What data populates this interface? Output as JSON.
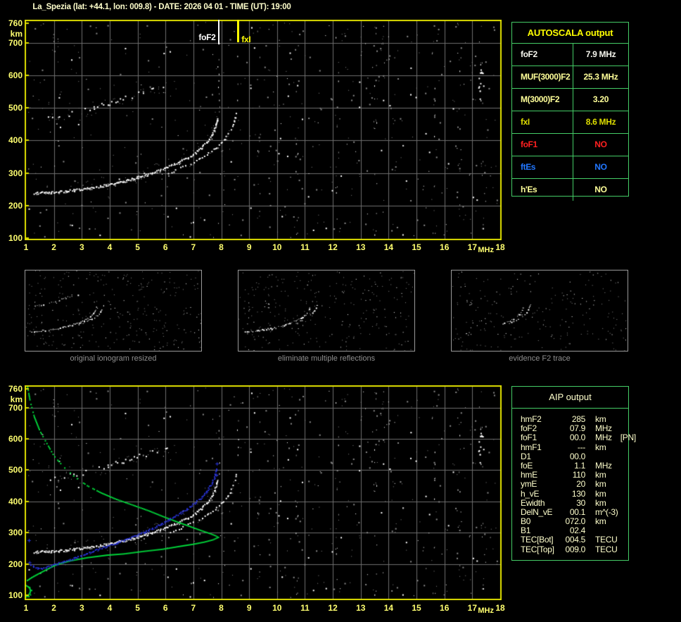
{
  "header": {
    "title": "La_Spezia (lat: +44.1, lon: 009.8) - DATE: 2026 04 01 - TIME (UT): 19:00"
  },
  "colors": {
    "background": "#000000",
    "plot_border": "#dede00",
    "grid": "#6e6e6e",
    "tick_label": "#ffff70",
    "panel_border": "#44cc66",
    "autoscala_title": "#ffff00",
    "aip_text": "#ffffcc",
    "caption_text": "#8f8f8f",
    "trace_white": "#ffffff",
    "noise_gray": "#8a8a8a",
    "profile_green": "#00dd3c",
    "restored_blue": "#2a35dd",
    "title_text": "#ffffcc"
  },
  "autoscala_panel": {
    "title": "AUTOSCALA output",
    "rows": [
      {
        "label": "foF2",
        "value": "7.9 MHz",
        "color": "#f6f6ee"
      },
      {
        "label": "MUF(3000)F2",
        "value": "25.3 MHz",
        "color": "#ffff99"
      },
      {
        "label": "M(3000)F2",
        "value": "3.20",
        "color": "#ffff99"
      },
      {
        "label": "fxI",
        "value": "8.6 MHz",
        "color": "#dddd00"
      },
      {
        "label": "foF1",
        "value": "NO",
        "color": "#ff2020"
      },
      {
        "label": "ftEs",
        "value": "NO",
        "color": "#2277ff"
      },
      {
        "label": "h'Es",
        "value": "NO",
        "color": "#ffff99"
      }
    ]
  },
  "thumbnails": [
    {
      "caption": "original ionogram resized"
    },
    {
      "caption": "eliminate multiple reflections"
    },
    {
      "caption": "evidence F2 trace"
    }
  ],
  "aip_panel": {
    "title": "AIP output",
    "rows": [
      {
        "name": "hmF2",
        "value": "285",
        "unit": "km",
        "extra": ""
      },
      {
        "name": "foF2",
        "value": "07.9",
        "unit": "MHz",
        "extra": ""
      },
      {
        "name": "foF1",
        "value": "00.0",
        "unit": "MHz",
        "extra": "[PN]"
      },
      {
        "name": "hmF1",
        "value": "---",
        "unit": "km",
        "extra": ""
      },
      {
        "name": "D1",
        "value": "00.0",
        "unit": "",
        "extra": ""
      },
      {
        "name": "foE",
        "value": "1.1",
        "unit": "MHz",
        "extra": ""
      },
      {
        "name": "hmE",
        "value": "110",
        "unit": "km",
        "extra": ""
      },
      {
        "name": "ymE",
        "value": "20",
        "unit": "km",
        "extra": ""
      },
      {
        "name": "h_vE",
        "value": "130",
        "unit": "km",
        "extra": ""
      },
      {
        "name": "Ewidth",
        "value": "30",
        "unit": "km",
        "extra": ""
      },
      {
        "name": "DelN_vE",
        "value": "00.1",
        "unit": "m^(-3)",
        "extra": ""
      },
      {
        "name": "B0",
        "value": "072.0",
        "unit": "km",
        "extra": ""
      },
      {
        "name": "B1",
        "value": "02.4",
        "unit": "",
        "extra": ""
      },
      {
        "name": "TEC[Bot]",
        "value": "004.5",
        "unit": "TECU",
        "extra": ""
      },
      {
        "name": "TEC[Top]",
        "value": "009.0",
        "unit": "TECU",
        "extra": ""
      }
    ]
  },
  "chart_data": [
    {
      "id": "main_ionogram",
      "type": "scatter",
      "title": "",
      "xlabel": "MHz",
      "ylabel": "km",
      "xlim": [
        1,
        18
      ],
      "ylim": [
        100,
        760
      ],
      "grid": true,
      "xticks": [
        1,
        2,
        3,
        4,
        5,
        6,
        7,
        8,
        9,
        10,
        11,
        12,
        13,
        14,
        15,
        16,
        17,
        18
      ],
      "yticks": [
        760,
        700,
        600,
        500,
        400,
        300,
        200,
        100
      ],
      "markers": [
        {
          "label": "foF2",
          "freq_mhz": 7.9,
          "color": "#ffffff"
        },
        {
          "label": "fxI",
          "freq_mhz": 8.6,
          "color": "#ffff00"
        }
      ],
      "series": [
        {
          "name": "F2 ordinary trace",
          "color": "#ffffff",
          "points": [
            [
              1.3,
              238
            ],
            [
              1.7,
              239
            ],
            [
              2.1,
              241
            ],
            [
              2.5,
              244
            ],
            [
              2.9,
              248
            ],
            [
              3.3,
              253
            ],
            [
              3.7,
              259
            ],
            [
              4.1,
              266
            ],
            [
              4.5,
              274
            ],
            [
              4.9,
              283
            ],
            [
              5.3,
              293
            ],
            [
              5.7,
              304
            ],
            [
              6.0,
              314
            ],
            [
              6.3,
              325
            ],
            [
              6.6,
              337
            ],
            [
              6.9,
              350
            ],
            [
              7.1,
              362
            ],
            [
              7.3,
              377
            ],
            [
              7.5,
              394
            ],
            [
              7.65,
              413
            ],
            [
              7.75,
              432
            ],
            [
              7.82,
              452
            ],
            [
              7.86,
              470
            ]
          ]
        },
        {
          "name": "F2 extraordinary trace",
          "color": "#ffffff",
          "points": [
            [
              6.1,
              298
            ],
            [
              6.5,
              312
            ],
            [
              6.9,
              327
            ],
            [
              7.2,
              341
            ],
            [
              7.5,
              356
            ],
            [
              7.8,
              374
            ],
            [
              8.0,
              391
            ],
            [
              8.2,
              410
            ],
            [
              8.35,
              430
            ],
            [
              8.45,
              450
            ],
            [
              8.52,
              472
            ],
            [
              8.56,
              495
            ]
          ]
        },
        {
          "name": "second hop (multiple reflection) trace",
          "color": "#ffffff",
          "points": [
            [
              1.8,
              468
            ],
            [
              2.2,
              474
            ],
            [
              2.6,
              481
            ],
            [
              3.0,
              489
            ],
            [
              3.4,
              498
            ],
            [
              3.8,
              508
            ],
            [
              4.2,
              519
            ],
            [
              4.6,
              531
            ],
            [
              5.0,
              543
            ],
            [
              5.4,
              554
            ],
            [
              5.8,
              562
            ],
            [
              6.2,
              570
            ]
          ]
        }
      ]
    },
    {
      "id": "thumb_original",
      "type": "scatter",
      "title": "original ionogram resized",
      "series_refs": [
        "F2 ordinary trace",
        "F2 extraordinary trace",
        "second hop (multiple reflection) trace"
      ]
    },
    {
      "id": "thumb_cleaned",
      "type": "scatter",
      "title": "eliminate multiple reflections",
      "series_refs": [
        "F2 ordinary trace",
        "F2 extraordinary trace"
      ]
    },
    {
      "id": "thumb_evidence",
      "type": "scatter",
      "title": "evidence F2 trace",
      "series_refs": [
        "F2 ordinary trace (steep section)",
        "F2 extraordinary trace (steep section)"
      ]
    },
    {
      "id": "restored_profile",
      "type": "scatter",
      "title": "",
      "xlabel": "MHz",
      "ylabel": "km",
      "xlim": [
        1,
        18
      ],
      "ylim": [
        100,
        760
      ],
      "grid": true,
      "xticks": [
        1,
        2,
        3,
        4,
        5,
        6,
        7,
        8,
        9,
        10,
        11,
        12,
        13,
        14,
        15,
        16,
        17,
        18
      ],
      "yticks": [
        760,
        700,
        600,
        500,
        400,
        300,
        200,
        100
      ],
      "series": [
        {
          "name": "electron density profile (top side)",
          "color": "#00dd3c",
          "points": [
            [
              1.05,
              770
            ],
            [
              1.15,
              720
            ],
            [
              1.3,
              670
            ],
            [
              1.5,
              625
            ],
            [
              1.75,
              585
            ],
            [
              2.0,
              546
            ],
            [
              2.35,
              510
            ],
            [
              2.75,
              478
            ],
            [
              3.2,
              450
            ],
            [
              3.7,
              427
            ],
            [
              4.2,
              408
            ],
            [
              4.8,
              389
            ],
            [
              5.4,
              370
            ],
            [
              5.9,
              352
            ],
            [
              6.4,
              335
            ],
            [
              6.9,
              319
            ],
            [
              7.3,
              306
            ],
            [
              7.6,
              297
            ],
            [
              7.8,
              290
            ],
            [
              7.9,
              285
            ]
          ]
        },
        {
          "name": "electron density profile (bottom side)",
          "color": "#00dd3c",
          "points": [
            [
              7.9,
              285
            ],
            [
              7.7,
              277
            ],
            [
              7.4,
              270
            ],
            [
              7.0,
              263
            ],
            [
              6.5,
              256
            ],
            [
              5.9,
              247
            ],
            [
              5.2,
              240
            ],
            [
              4.5,
              232
            ],
            [
              3.9,
              228
            ],
            [
              3.2,
              220
            ],
            [
              2.6,
              210
            ],
            [
              2.1,
              198
            ],
            [
              1.7,
              180
            ],
            [
              1.4,
              166
            ],
            [
              1.2,
              156
            ],
            [
              1.05,
              147
            ],
            [
              1.0,
              143
            ]
          ]
        },
        {
          "name": "E layer profile",
          "color": "#00dd3c",
          "points": [
            [
              1.0,
              131
            ],
            [
              1.08,
              127
            ],
            [
              1.14,
              121
            ],
            [
              1.16,
              114
            ],
            [
              1.14,
              107
            ],
            [
              1.08,
              100
            ],
            [
              1.02,
              95
            ],
            [
              1.0,
              92
            ]
          ]
        },
        {
          "name": "restored F2 trace",
          "color": "#2a35dd",
          "points": [
            [
              1.2,
              197
            ],
            [
              1.4,
              186
            ],
            [
              1.6,
              185
            ],
            [
              1.9,
              193
            ],
            [
              2.2,
              202
            ],
            [
              2.6,
              214
            ],
            [
              3.0,
              227
            ],
            [
              3.5,
              243
            ],
            [
              4.0,
              259
            ],
            [
              4.5,
              275
            ],
            [
              5.0,
              292
            ],
            [
              5.5,
              311
            ],
            [
              5.9,
              330
            ],
            [
              6.3,
              349
            ],
            [
              6.7,
              371
            ],
            [
              7.0,
              390
            ],
            [
              7.25,
              409
            ],
            [
              7.45,
              428
            ],
            [
              7.6,
              447
            ],
            [
              7.72,
              467
            ],
            [
              7.8,
              488
            ],
            [
              7.85,
              507
            ]
          ]
        },
        {
          "name": "isolated restored points",
          "color": "#2a35dd",
          "points": [
            [
              1.1,
              276
            ],
            [
              7.84,
              521
            ],
            [
              7.82,
              485
            ],
            [
              1.12,
              205
            ]
          ]
        }
      ]
    }
  ]
}
